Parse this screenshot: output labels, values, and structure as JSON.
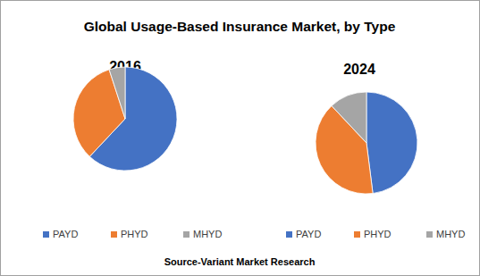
{
  "chart_data": [
    {
      "type": "pie",
      "title": "Global Usage-Based Insurance Market, by Type",
      "subtitle": "2016",
      "categories": [
        "PAYD",
        "PHYD",
        "MHYD"
      ],
      "values": [
        62,
        33,
        5
      ],
      "colors": [
        "#4472c4",
        "#ed7d31",
        "#a5a5a5"
      ],
      "legend": "bottom",
      "annotations": [
        "Source-Variant Market Research"
      ]
    },
    {
      "type": "pie",
      "subtitle": "2024",
      "categories": [
        "PAYD",
        "PHYD",
        "MHYD"
      ],
      "values": [
        48,
        40,
        12
      ],
      "colors": [
        "#4472c4",
        "#ed7d31",
        "#a5a5a5"
      ],
      "legend": "bottom"
    }
  ]
}
